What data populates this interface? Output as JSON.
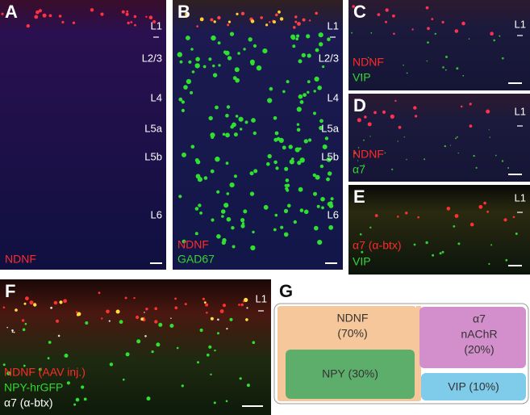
{
  "panels": {
    "A": {
      "letter": "A",
      "layers": [
        "L1",
        "L2/3",
        "L4",
        "L5a",
        "L5b",
        "L6"
      ],
      "stains": [
        "NDNF"
      ]
    },
    "B": {
      "letter": "B",
      "layers": [
        "L1",
        "L2/3",
        "L4",
        "L5a",
        "L5b",
        "L6"
      ],
      "stains": [
        "NDNF",
        "GAD67"
      ]
    },
    "C": {
      "letter": "C",
      "layers": [
        "L1"
      ],
      "stains": [
        "NDNF",
        "VIP"
      ]
    },
    "D": {
      "letter": "D",
      "layers": [
        "L1"
      ],
      "stains": [
        "NDNF",
        "α7"
      ]
    },
    "E": {
      "letter": "E",
      "layers": [
        "L1"
      ],
      "stains": [
        "α7 (α-btx)",
        "VIP"
      ]
    },
    "F": {
      "letter": "F",
      "layers": [
        "L1"
      ],
      "stains": [
        "NDNF (AAV inj.)",
        "NPY-hrGFP",
        "α7 (α-btx)"
      ]
    }
  },
  "diagram": {
    "letter": "G",
    "ndnf": [
      "NDNF",
      "(70%)"
    ],
    "npy": "NPY (30%)",
    "a7": [
      "α7",
      "nAChR",
      "(20%)"
    ],
    "vip": "VIP (10%)"
  }
}
